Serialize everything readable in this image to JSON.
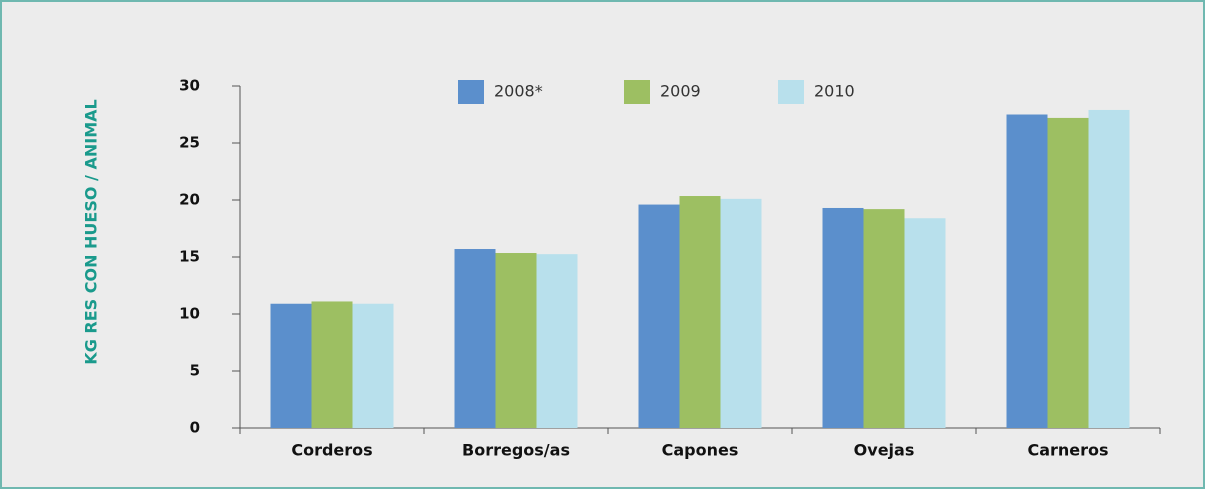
{
  "chart_data": {
    "type": "bar",
    "y_label": "KG RES CON HUESO / ANIMAL",
    "categories": [
      "Corderos",
      "Borregos/as",
      "Capones",
      "Ovejas",
      "Carneros"
    ],
    "series": [
      {
        "name": "2008*",
        "color": "#5b8fcc",
        "values": [
          10.9,
          15.7,
          19.6,
          19.3,
          27.5
        ]
      },
      {
        "name": "2009",
        "color": "#9dbf62",
        "values": [
          11.1,
          15.35,
          20.35,
          19.2,
          27.2
        ]
      },
      {
        "name": "2010",
        "color": "#b8e0ec",
        "values": [
          10.9,
          15.25,
          20.1,
          18.4,
          27.9
        ]
      }
    ],
    "ylim": [
      0,
      30
    ],
    "yticks": [
      0,
      5,
      10,
      15,
      20,
      25,
      30
    ]
  }
}
